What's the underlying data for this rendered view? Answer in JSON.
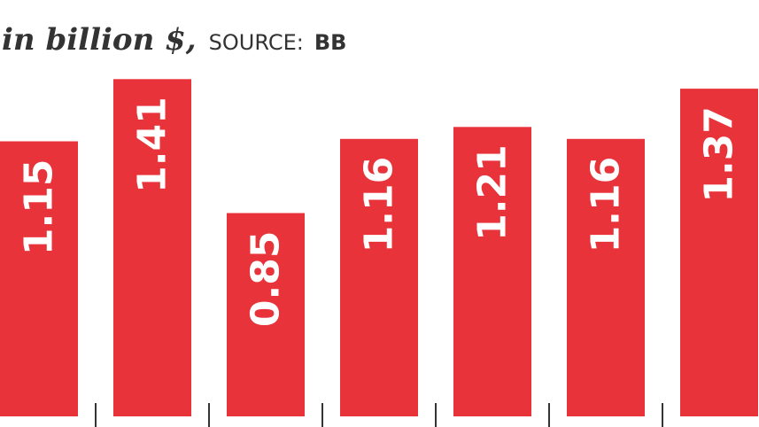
{
  "chart_data": {
    "type": "bar",
    "subtitle": "in billion $,",
    "source_label": "SOURCE:",
    "source": "BB",
    "categories": [
      null,
      null,
      null,
      null,
      null,
      null,
      null
    ],
    "values": [
      1.15,
      1.41,
      0.85,
      1.16,
      1.21,
      1.16,
      1.37
    ],
    "color": "#e8333a"
  }
}
